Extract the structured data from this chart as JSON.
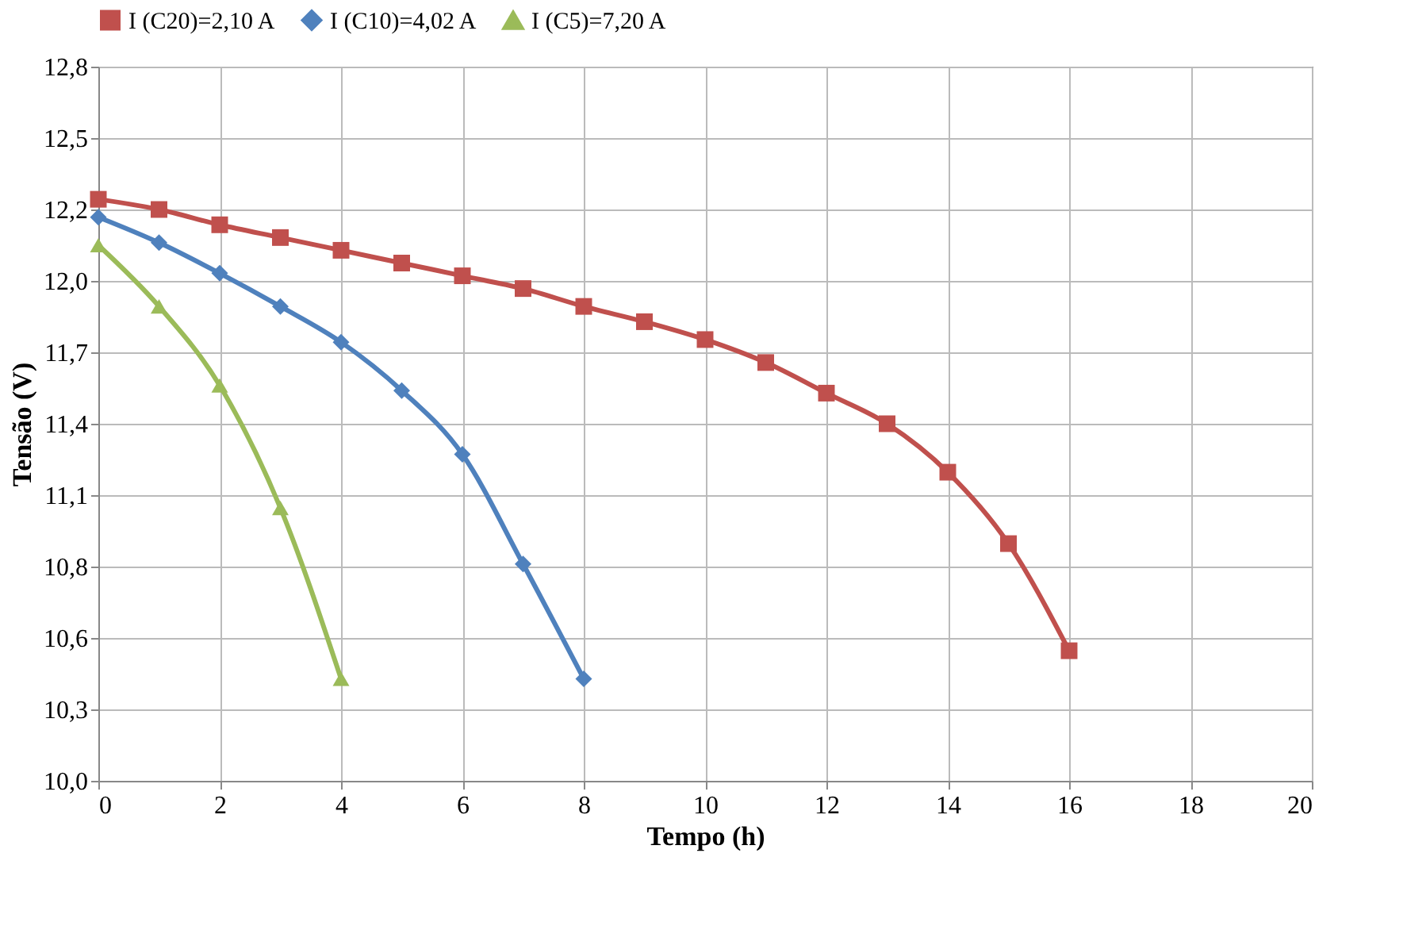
{
  "chart_data": {
    "type": "line",
    "xlabel": "Tempo (h)",
    "ylabel": "Tensão (V)",
    "xlim": [
      0,
      20
    ],
    "xticks": [
      0,
      2,
      4,
      6,
      8,
      10,
      12,
      14,
      16,
      18,
      20
    ],
    "ylim": [
      10,
      12.8
    ],
    "yticks": [
      {
        "value": 10,
        "label": "10,0"
      },
      {
        "value": 10.28,
        "label": "10,3"
      },
      {
        "value": 10.56,
        "label": "10,6"
      },
      {
        "value": 10.84,
        "label": "10,8"
      },
      {
        "value": 11.12,
        "label": "11,1"
      },
      {
        "value": 11.4,
        "label": "11,4"
      },
      {
        "value": 11.68,
        "label": "11,7"
      },
      {
        "value": 11.96,
        "label": "12,0"
      },
      {
        "value": 12.24,
        "label": "12,2"
      },
      {
        "value": 12.52,
        "label": "12,5"
      },
      {
        "value": 12.8,
        "label": "12,8"
      }
    ],
    "grid": true,
    "legend": "top",
    "series": [
      {
        "name": "I (C20)=2,10 A",
        "color": "#c0504d",
        "marker": "square",
        "x": [
          0,
          1,
          2,
          3,
          4,
          5,
          6,
          7,
          8,
          9,
          10,
          11,
          12,
          13,
          14,
          15,
          16
        ],
        "values": [
          12.28,
          12.24,
          12.18,
          12.13,
          12.08,
          12.03,
          11.98,
          11.93,
          11.86,
          11.8,
          11.73,
          11.64,
          11.52,
          11.4,
          11.21,
          10.93,
          10.51
        ]
      },
      {
        "name": "I (C10)=4,02 A",
        "color": "#4f81bd",
        "marker": "diamond",
        "x": [
          0,
          1,
          2,
          3,
          4,
          5,
          6,
          7,
          8
        ],
        "values": [
          12.21,
          12.11,
          11.99,
          11.86,
          11.72,
          11.53,
          11.28,
          10.85,
          10.4
        ]
      },
      {
        "name": "I (C5)=7,20 A",
        "color": "#9bbb59",
        "marker": "triangle",
        "x": [
          0,
          1,
          2,
          3,
          4
        ],
        "values": [
          12.1,
          11.86,
          11.55,
          11.07,
          10.4
        ]
      }
    ]
  }
}
